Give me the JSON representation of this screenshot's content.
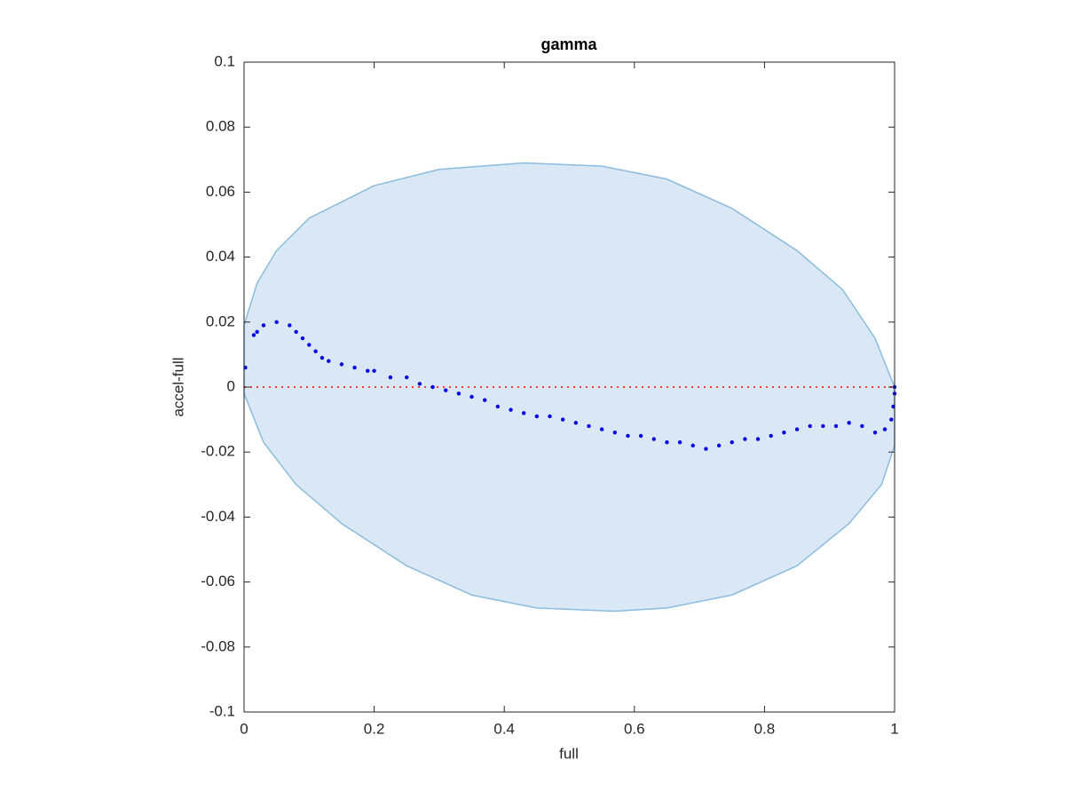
{
  "chart_data": {
    "type": "scatter",
    "title": "gamma",
    "x_label": "full",
    "y_label": "accel-full",
    "xlim": [
      0,
      1
    ],
    "ylim": [
      -0.1,
      0.1
    ],
    "xticks": [
      0,
      0.2,
      0.4,
      0.6,
      0.8,
      1
    ],
    "yticks": [
      -0.1,
      -0.08,
      -0.06,
      -0.04,
      -0.02,
      0,
      0.02,
      0.04,
      0.06,
      0.08,
      0.1
    ],
    "reference_line": {
      "y": 0,
      "color": "#ff3333"
    },
    "series": [
      {
        "kind": "area",
        "color": "#d9e8f4",
        "edge_color": "#8bbcde",
        "x": [
          0,
          0.02,
          0.05,
          0.1,
          0.2,
          0.3,
          0.43,
          0.55,
          0.65,
          0.75,
          0.85,
          0.92,
          0.97,
          1,
          1,
          0.98,
          0.93,
          0.85,
          0.75,
          0.65,
          0.57,
          0.45,
          0.35,
          0.25,
          0.15,
          0.08,
          0.03,
          0
        ],
        "y": [
          0.019,
          0.032,
          0.042,
          0.052,
          0.062,
          0.067,
          0.069,
          0.068,
          0.064,
          0.055,
          0.042,
          0.03,
          0.015,
          0,
          -0.018,
          -0.03,
          -0.042,
          -0.055,
          -0.064,
          -0.068,
          -0.069,
          -0.068,
          -0.064,
          -0.055,
          -0.042,
          -0.03,
          -0.017,
          -0.002
        ]
      },
      {
        "kind": "points",
        "color": "#0000e6",
        "x": [
          0.002,
          0.015,
          0.02,
          0.03,
          0.05,
          0.07,
          0.08,
          0.09,
          0.1,
          0.11,
          0.12,
          0.13,
          0.15,
          0.17,
          0.19,
          0.2,
          0.225,
          0.25,
          0.27,
          0.29,
          0.31,
          0.33,
          0.35,
          0.37,
          0.39,
          0.41,
          0.43,
          0.45,
          0.47,
          0.49,
          0.51,
          0.53,
          0.55,
          0.57,
          0.59,
          0.61,
          0.63,
          0.65,
          0.67,
          0.69,
          0.71,
          0.73,
          0.75,
          0.77,
          0.79,
          0.81,
          0.83,
          0.85,
          0.87,
          0.89,
          0.91,
          0.93,
          0.95,
          0.97,
          0.985,
          0.995,
          0.998,
          1,
          1
        ],
        "y": [
          0.006,
          0.016,
          0.017,
          0.019,
          0.02,
          0.019,
          0.017,
          0.015,
          0.013,
          0.011,
          0.009,
          0.008,
          0.007,
          0.006,
          0.005,
          0.005,
          0.003,
          0.003,
          0.001,
          0,
          -0.001,
          -0.002,
          -0.003,
          -0.004,
          -0.006,
          -0.007,
          -0.008,
          -0.009,
          -0.009,
          -0.01,
          -0.011,
          -0.012,
          -0.013,
          -0.014,
          -0.015,
          -0.015,
          -0.016,
          -0.017,
          -0.017,
          -0.018,
          -0.019,
          -0.018,
          -0.017,
          -0.016,
          -0.016,
          -0.015,
          -0.014,
          -0.013,
          -0.012,
          -0.012,
          -0.012,
          -0.011,
          -0.012,
          -0.014,
          -0.013,
          -0.01,
          -0.006,
          -0.002,
          0
        ]
      }
    ]
  }
}
